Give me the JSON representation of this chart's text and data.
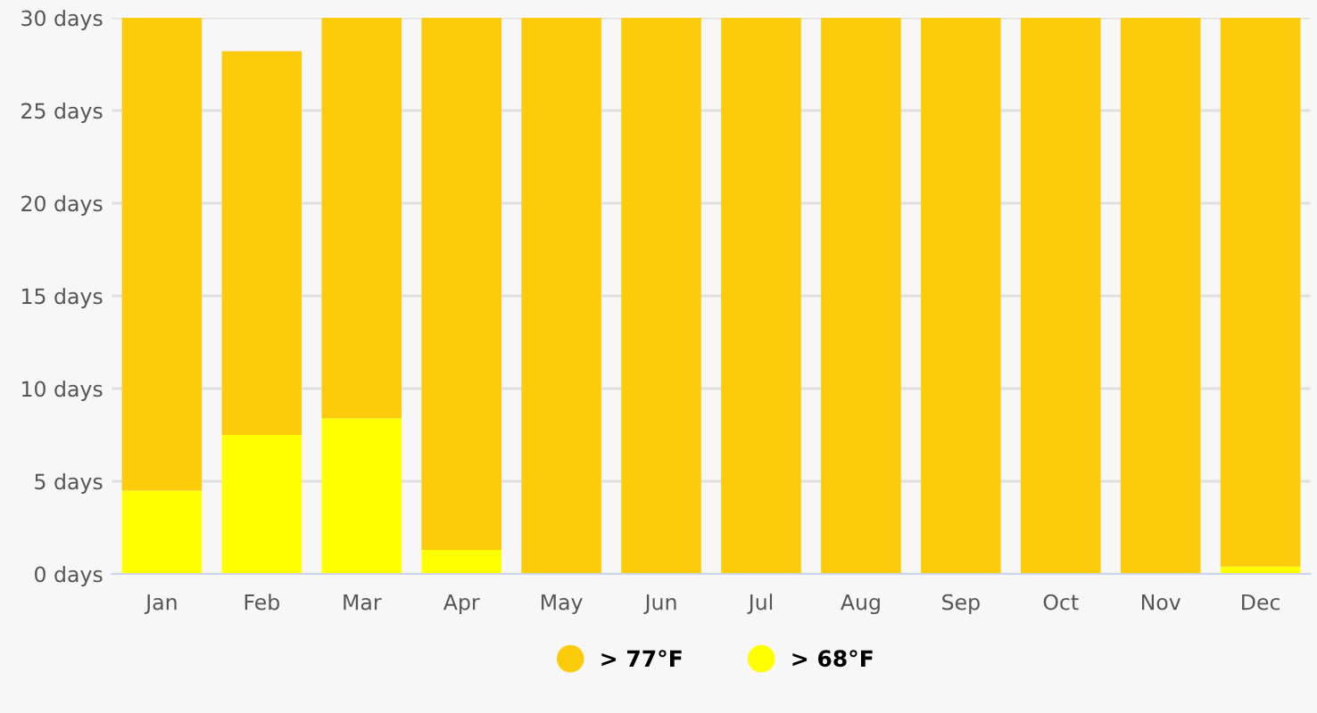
{
  "chart_data": {
    "type": "bar",
    "stacked": true,
    "categories": [
      "Jan",
      "Feb",
      "Mar",
      "Apr",
      "May",
      "Jun",
      "Jul",
      "Aug",
      "Sep",
      "Oct",
      "Nov",
      "Dec"
    ],
    "series": [
      {
        "name": "> 68°F",
        "color": "#ffff00",
        "values": [
          4.5,
          7.5,
          8.4,
          1.3,
          0,
          0,
          0,
          0,
          0,
          0,
          0,
          0.4
        ]
      },
      {
        "name": "> 77°F",
        "color": "#fccb0c",
        "values": [
          25.5,
          20.7,
          21.6,
          28.7,
          30,
          30,
          30,
          30,
          30,
          30,
          30,
          29.6
        ]
      }
    ],
    "ylim": [
      0,
      30
    ],
    "yticks": [
      {
        "value": 0,
        "label": "0 days"
      },
      {
        "value": 5,
        "label": "5 days"
      },
      {
        "value": 10,
        "label": "10 days"
      },
      {
        "value": 15,
        "label": "15 days"
      },
      {
        "value": 20,
        "label": "20 days"
      },
      {
        "value": 25,
        "label": "25 days"
      },
      {
        "value": 30,
        "label": "30 days"
      }
    ],
    "grid": "y",
    "legend": "bottom"
  }
}
